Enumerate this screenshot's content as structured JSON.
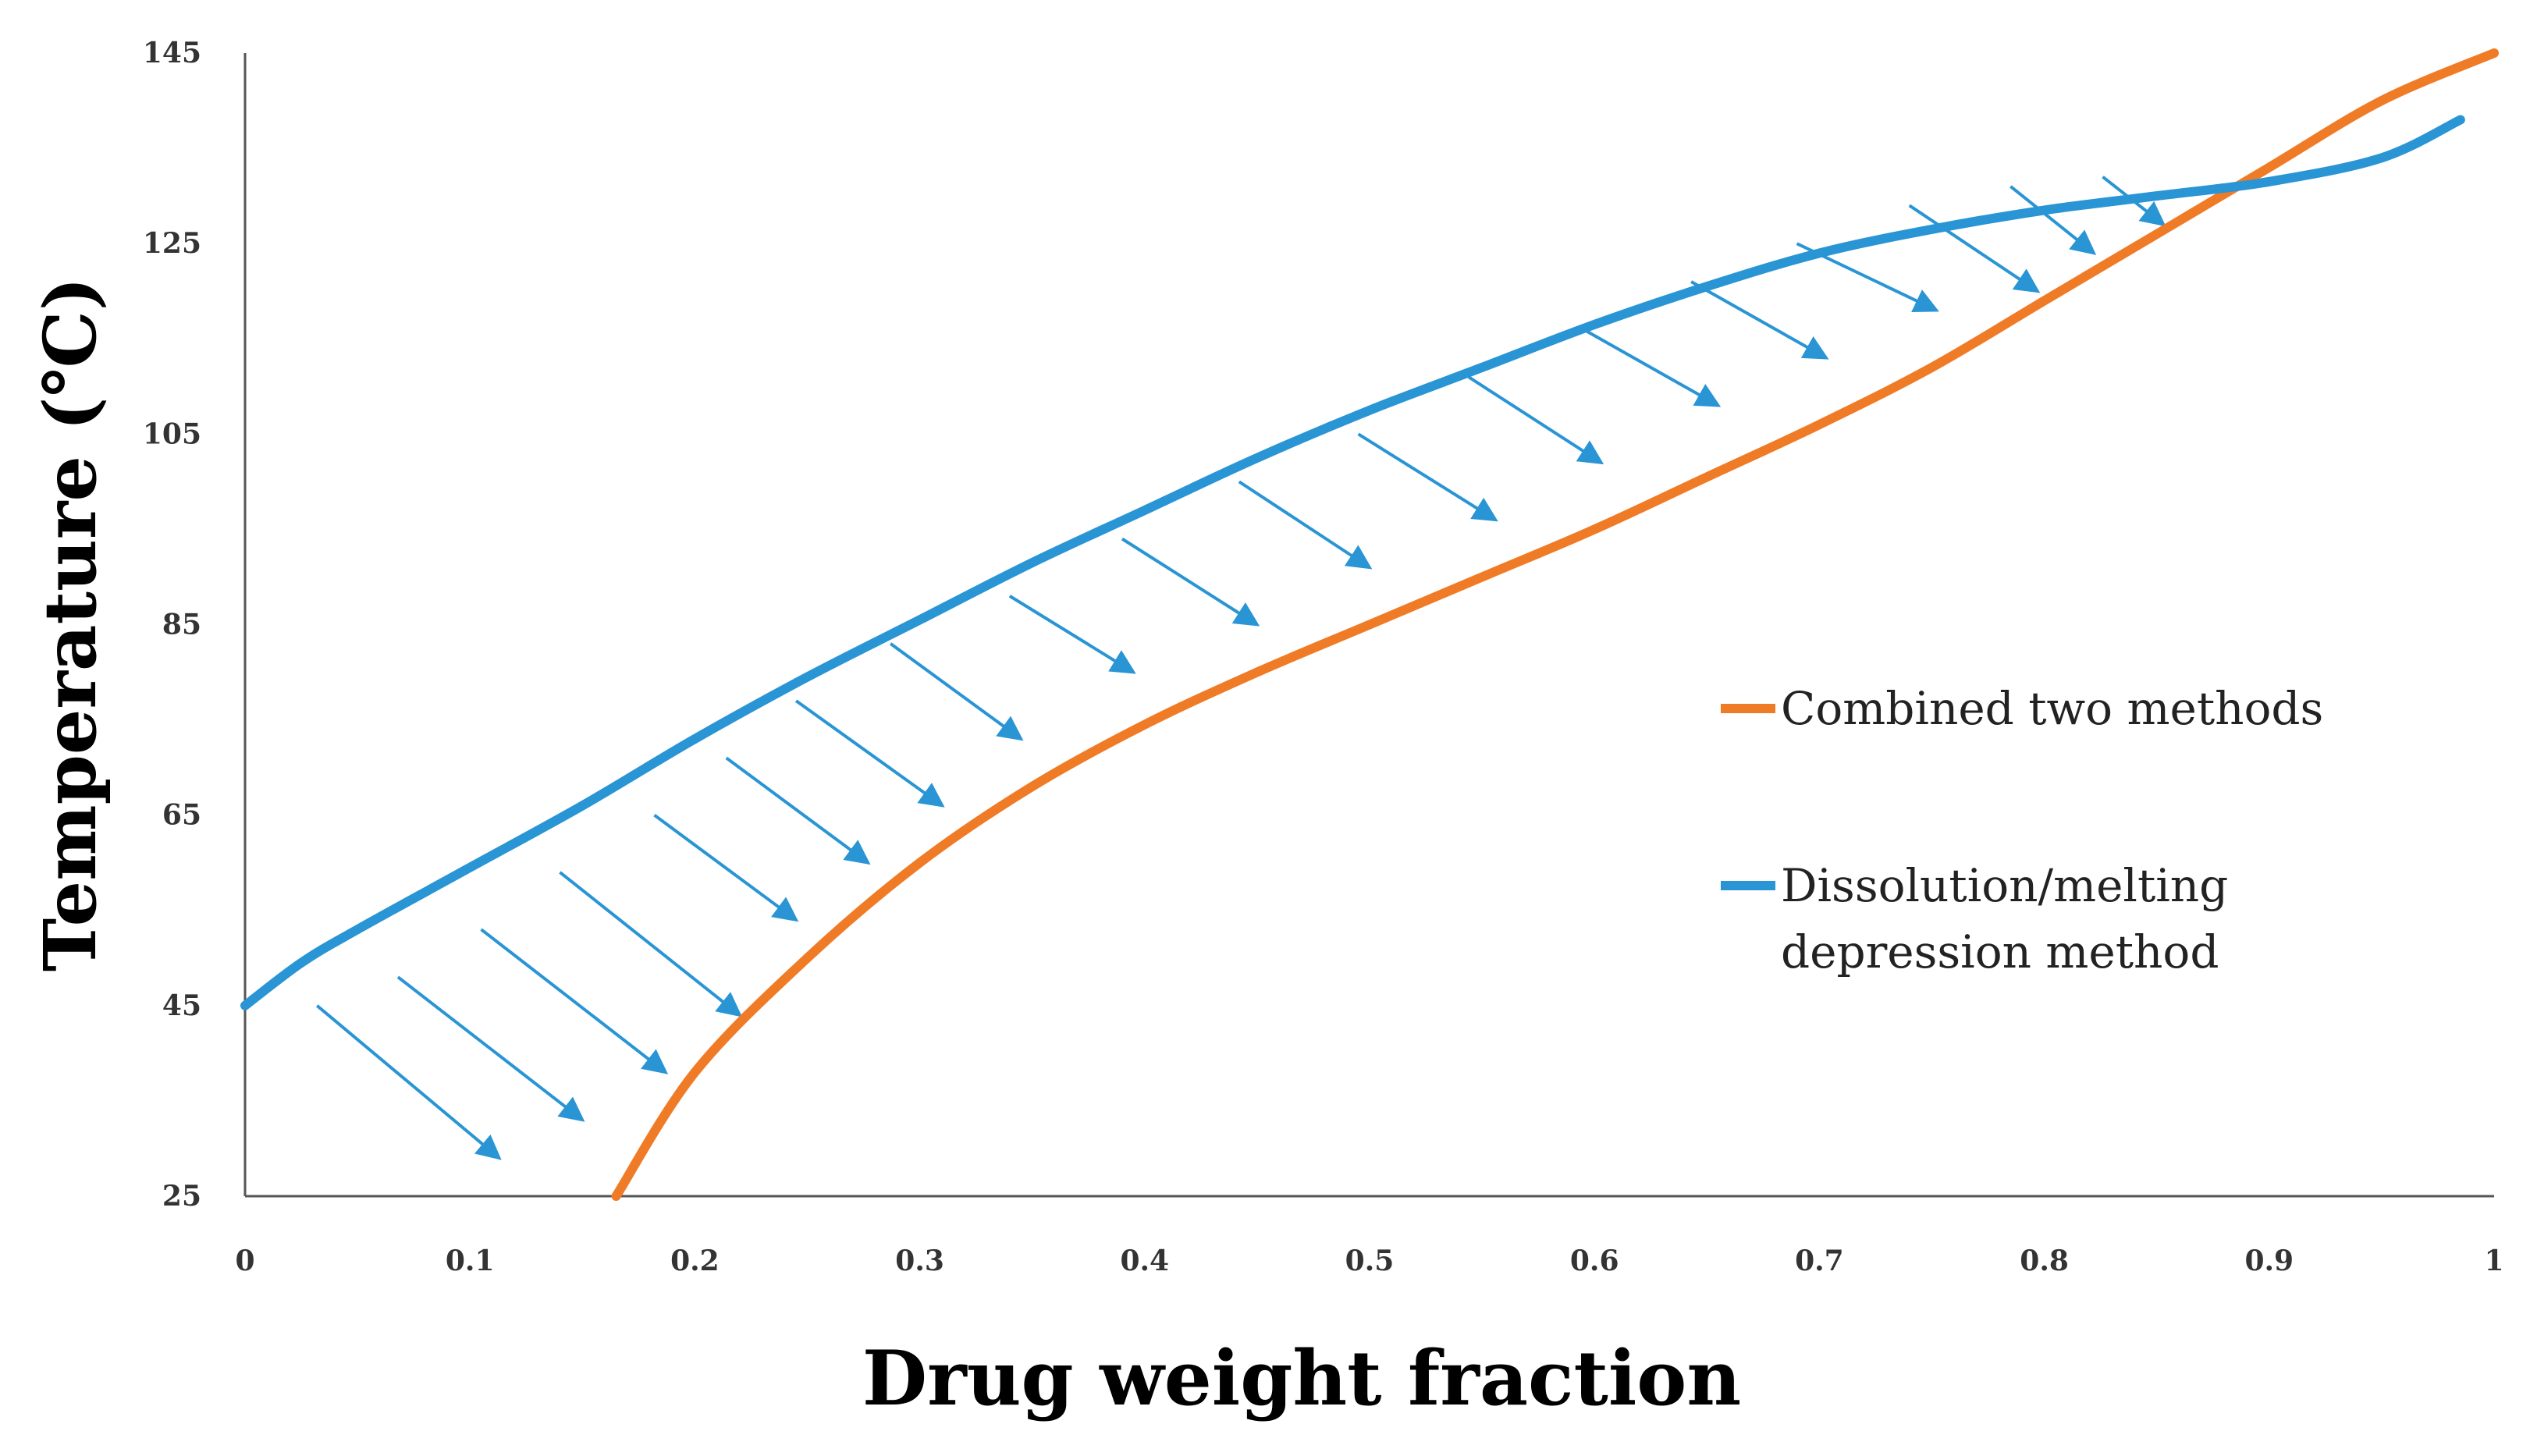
{
  "chart_data": {
    "type": "line",
    "xlabel": "Drug weight fraction",
    "ylabel": "Temperature (℃)",
    "xlim": [
      0,
      1
    ],
    "ylim": [
      25,
      145
    ],
    "x_ticks": [
      "0",
      "0.1",
      "0.2",
      "0.3",
      "0.4",
      "0.5",
      "0.6",
      "0.7",
      "0.8",
      "0.9",
      "1"
    ],
    "y_ticks": [
      "25",
      "45",
      "65",
      "85",
      "105",
      "125",
      "145"
    ],
    "grid": false,
    "legend_position": "center-right",
    "series": [
      {
        "name": "Combined two methods",
        "color": "#F07B26",
        "x": [
          0.165,
          0.2,
          0.25,
          0.3,
          0.35,
          0.4,
          0.45,
          0.5,
          0.55,
          0.6,
          0.65,
          0.7,
          0.75,
          0.8,
          0.85,
          0.9,
          0.95,
          1.0
        ],
        "y": [
          25,
          38,
          50,
          60,
          68,
          74.5,
          80,
          85,
          90,
          95,
          100.5,
          106,
          112,
          119,
          126,
          133,
          140,
          145
        ]
      },
      {
        "name": "Dissolution/melting depression method",
        "name_lines": [
          "Dissolution/melting",
          "depression method"
        ],
        "color": "#2A95D4",
        "x": [
          0,
          0.025,
          0.05,
          0.1,
          0.15,
          0.2,
          0.25,
          0.3,
          0.35,
          0.4,
          0.45,
          0.5,
          0.55,
          0.6,
          0.65,
          0.7,
          0.75,
          0.8,
          0.85,
          0.9,
          0.95,
          0.985
        ],
        "y": [
          45,
          49.5,
          53,
          59.5,
          66,
          73,
          79.5,
          85.5,
          91.5,
          97,
          102.5,
          107.5,
          112,
          116.5,
          120.5,
          124,
          126.5,
          128.5,
          130,
          131.5,
          134,
          138
        ]
      }
    ],
    "annotations": {
      "type": "arrows",
      "color": "#2A95D4",
      "description_free": true,
      "arrows": [
        [
          0.032,
          45,
          0.113,
          29
        ],
        [
          0.068,
          48,
          0.15,
          33
        ],
        [
          0.105,
          53,
          0.187,
          38
        ],
        [
          0.14,
          59,
          0.22,
          44
        ],
        [
          0.182,
          65,
          0.245,
          54
        ],
        [
          0.214,
          71,
          0.277,
          60
        ],
        [
          0.245,
          77,
          0.31,
          66
        ],
        [
          0.287,
          83,
          0.345,
          73
        ],
        [
          0.34,
          88,
          0.395,
          80
        ],
        [
          0.39,
          94,
          0.45,
          85
        ],
        [
          0.442,
          100,
          0.5,
          91
        ],
        [
          0.495,
          105,
          0.556,
          96
        ],
        [
          0.544,
          111,
          0.603,
          102
        ],
        [
          0.595,
          116,
          0.655,
          108
        ],
        [
          0.643,
          121,
          0.703,
          113
        ],
        [
          0.69,
          125,
          0.752,
          118
        ],
        [
          0.74,
          129,
          0.797,
          120
        ],
        [
          0.785,
          131,
          0.822,
          124
        ],
        [
          0.826,
          132,
          0.853,
          127
        ]
      ]
    }
  }
}
